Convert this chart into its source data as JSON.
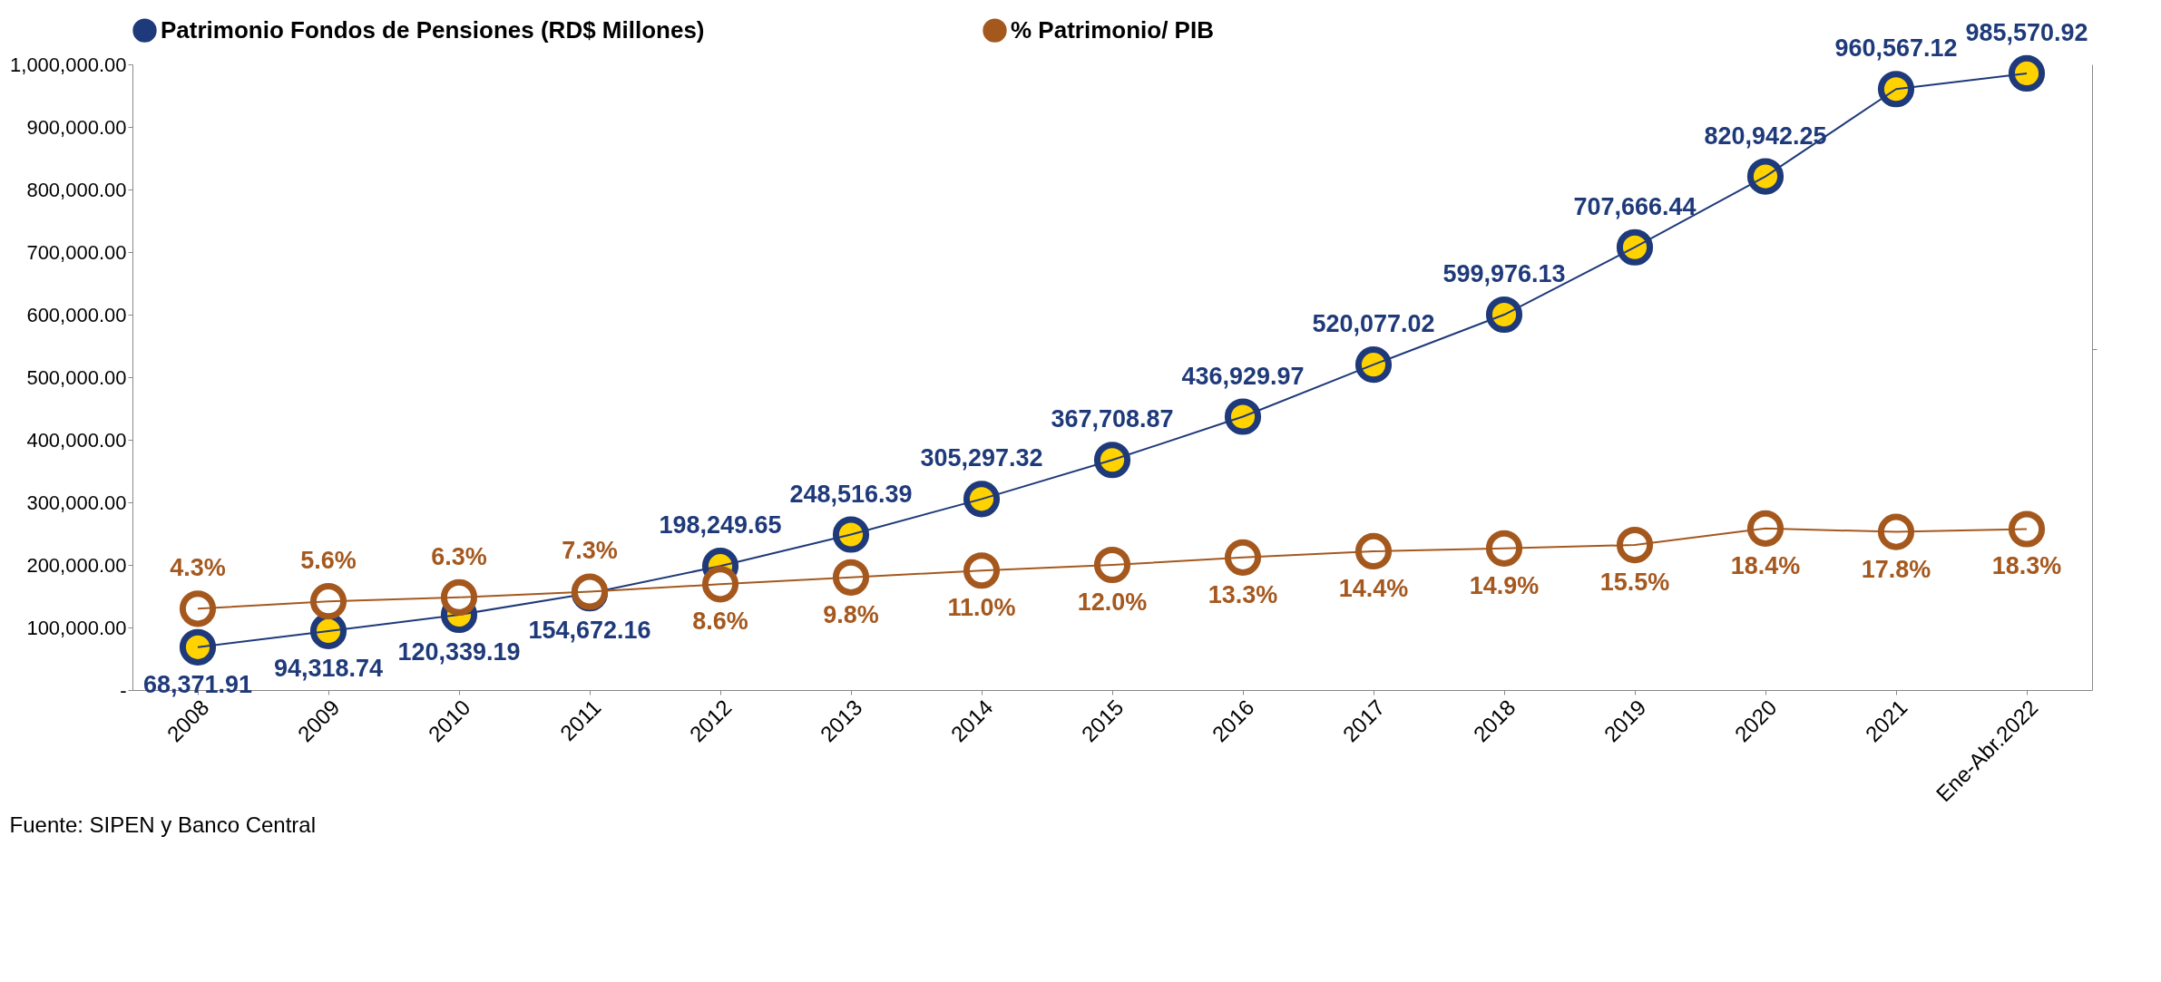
{
  "chart_data": {
    "type": "line",
    "categories": [
      "2008",
      "2009",
      "2010",
      "2011",
      "2012",
      "2013",
      "2014",
      "2015",
      "2016",
      "2017",
      "2018",
      "2019",
      "2020",
      "2021",
      "Ene-Abr.2022"
    ],
    "series": [
      {
        "name": "Patrimonio Fondos de Pensiones (RD$ Millones)",
        "color": "#1f3a7a",
        "values": [
          68371.91,
          94318.74,
          120339.19,
          154672.16,
          198249.65,
          248516.39,
          305297.32,
          367708.87,
          436929.97,
          520077.02,
          599976.13,
          707666.44,
          820942.25,
          960567.12,
          985570.92
        ],
        "value_labels": [
          "68,371.91",
          "94,318.74",
          "120,339.19",
          "154,672.16",
          "198,249.65",
          "248,516.39",
          "305,297.32",
          "367,708.87",
          "436,929.97",
          "520,077.02",
          "599,976.13",
          "707,666.44",
          "820,942.25",
          "960,567.12",
          "985,570.92"
        ]
      },
      {
        "name": "% Patrimonio/ PIB",
        "color": "#a5581e",
        "axis": "y2",
        "values": [
          4.3,
          5.6,
          6.3,
          7.3,
          8.6,
          9.8,
          11.0,
          12.0,
          13.3,
          14.4,
          14.9,
          15.5,
          18.4,
          17.8,
          18.3
        ],
        "value_labels": [
          "4.3%",
          "5.6%",
          "6.3%",
          "7.3%",
          "8.6%",
          "9.8%",
          "11.0%",
          "12.0%",
          "13.3%",
          "14.4%",
          "14.9%",
          "15.5%",
          "18.4%",
          "17.8%",
          "18.3%"
        ]
      }
    ],
    "ylim": [
      0,
      1000000
    ],
    "yticks": [
      {
        "value": 0,
        "label": "-"
      },
      {
        "value": 100000,
        "label": "100,000.00"
      },
      {
        "value": 200000,
        "label": "200,000.00"
      },
      {
        "value": 300000,
        "label": "300,000.00"
      },
      {
        "value": 400000,
        "label": "400,000.00"
      },
      {
        "value": 500000,
        "label": "500,000.00"
      },
      {
        "value": 600000,
        "label": "600,000.00"
      },
      {
        "value": 700000,
        "label": "700,000.00"
      },
      {
        "value": 800000,
        "label": "800,000.00"
      },
      {
        "value": 900000,
        "label": "900,000.00"
      },
      {
        "value": 1000000,
        "label": "1,000,000.00"
      }
    ],
    "y2lim": [
      -10,
      100
    ],
    "y2ticks": [
      {
        "value": 50,
        "label": null
      }
    ],
    "marker": "circle",
    "line_style": "solid",
    "grid": false,
    "legend": "top",
    "annotations": [
      "Fuente: SIPEN y Banco Central"
    ]
  }
}
